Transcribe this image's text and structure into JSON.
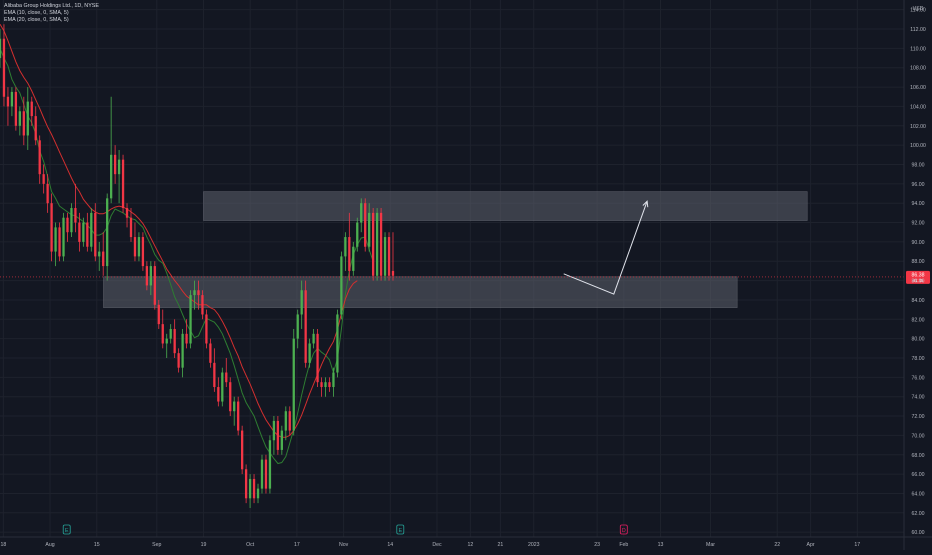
{
  "header": {
    "symbol_line": "Alibaba Group Holdings Ltd., 1D, NYSE",
    "indicator1": "EMA (10, close, 0, SMA, 5)",
    "indicator2": "EMA (20, close, 0, SMA, 5)"
  },
  "colors": {
    "background": "#131722",
    "grid": "#1e222d",
    "up": "#26a69a",
    "up_candle": "#4caf50",
    "down": "#f23645",
    "ema_fast": "#2e7d32",
    "ema_slow": "#d32f2f",
    "zone": "#5d606b",
    "text": "#b2b5be"
  },
  "price_axis": {
    "currency": "USD",
    "ticks": [
      "60.00",
      "62.00",
      "64.00",
      "66.00",
      "68.00",
      "70.00",
      "72.00",
      "74.00",
      "76.00",
      "78.00",
      "80.00",
      "82.00",
      "84.00",
      "86.00",
      "88.00",
      "90.00",
      "92.00",
      "94.00",
      "96.00",
      "98.00",
      "100.00",
      "102.00",
      "104.00",
      "106.00",
      "108.00",
      "110.00",
      "112.00",
      "114.00"
    ],
    "last_price": "86.38",
    "last_price_sub": "41:45"
  },
  "time_axis": {
    "labels": [
      {
        "label": "18",
        "day": 0
      },
      {
        "label": "Aug",
        "day": 14
      },
      {
        "label": "15",
        "day": 28
      },
      {
        "label": "Sep",
        "day": 46
      },
      {
        "label": "19",
        "day": 60
      },
      {
        "label": "Oct",
        "day": 74
      },
      {
        "label": "17",
        "day": 88
      },
      {
        "label": "Nov",
        "day": 102
      },
      {
        "label": "14",
        "day": 116
      },
      {
        "label": "Dec",
        "day": 130
      },
      {
        "label": "12",
        "day": 140
      },
      {
        "label": "21",
        "day": 149
      },
      {
        "label": "2023",
        "day": 159
      },
      {
        "label": "23",
        "day": 178
      },
      {
        "label": "Feb",
        "day": 186
      },
      {
        "label": "13",
        "day": 197
      },
      {
        "label": "Mar",
        "day": 212
      },
      {
        "label": "22",
        "day": 232
      },
      {
        "label": "Apr",
        "day": 242
      },
      {
        "label": "17",
        "day": 256
      }
    ]
  },
  "markers": [
    {
      "day": 19,
      "label": "E",
      "type": "earnings"
    },
    {
      "day": 119,
      "label": "E",
      "type": "earnings"
    },
    {
      "day": 186,
      "label": "D",
      "type": "dividend"
    }
  ],
  "chart_data": {
    "type": "candlestick",
    "ylim": [
      59.5,
      115
    ],
    "xlim": [
      -1,
      270
    ],
    "series": [
      {
        "name": "EMA (10, close, 0, SMA, 5)",
        "values": [
          110,
          109,
          108.2,
          106.8,
          106,
          105.4,
          104.2,
          103,
          102.3,
          101.2,
          99.4,
          98.3,
          96.8,
          95.2,
          94.5,
          93.7,
          93.4,
          93.1,
          92.8,
          92.7,
          92.4,
          92.1,
          91.7,
          91.3,
          90.7,
          90.7,
          90.9,
          91.5,
          92.7,
          93.4,
          93.2,
          93,
          92.7,
          92.4,
          92.3,
          91.9,
          91.5,
          90.5,
          89.7,
          88.7,
          88.1,
          87.8,
          86.8,
          85.6,
          84.3,
          83.5,
          82.5,
          81.5,
          80.8,
          80.1,
          80.3,
          81.2,
          82.1,
          81.9,
          81.7,
          81.2,
          80.5,
          79.5,
          78.5,
          77.2,
          75.8,
          74.4,
          73.4,
          72.7,
          72,
          70.9,
          69.8,
          68.8,
          68.2,
          67.6,
          67.1,
          67.2,
          67.8,
          69.2,
          70.6,
          72.3,
          74.2,
          75.9,
          77.4,
          78.5,
          79,
          78.6,
          78.3,
          77.8,
          76.5,
          77.9,
          81,
          84.6,
          87,
          88.7,
          89.7,
          90.4,
          90.5,
          89.2,
          88
        ]
      },
      {
        "name": "EMA (20, close, 0, SMA, 5)",
        "values": [
          112.5,
          111.8,
          110.8,
          109.7,
          108.6,
          107.7,
          107,
          106.4,
          105.6,
          104.7,
          103.8,
          102.8,
          101.9,
          101.1,
          100.2,
          99.3,
          98.4,
          97.5,
          96.6,
          95.8,
          95.2,
          94.4,
          93.9,
          93.4,
          93.1,
          92.9,
          92.9,
          93.1,
          93.4,
          93.6,
          93.7,
          93.6,
          93.4,
          93.1,
          92.8,
          92.4,
          91.9,
          91.2,
          90.4,
          89.6,
          88.8,
          88,
          87.2,
          86.6,
          86,
          85.5,
          84.9,
          84.4,
          84.1,
          83.8,
          83.5,
          83.5,
          83.5,
          83.2,
          83,
          82.5,
          81.8,
          81,
          80.1,
          79.1,
          78.2,
          77.1,
          76.2,
          75.3,
          74.3,
          73.3,
          72.4,
          71.6,
          71,
          70.4,
          70,
          69.8,
          69.8,
          70,
          70.5,
          71.2,
          72.1,
          73.2,
          74.3,
          75.3,
          76.3,
          77.3,
          78.2,
          79,
          79.7,
          80.9,
          82.6,
          84.1,
          85.1,
          85.7,
          86
        ]
      }
    ],
    "candles": [
      [
        109,
        112,
        108,
        111
      ],
      [
        111,
        112.5,
        104,
        105
      ],
      [
        105,
        106,
        102,
        104
      ],
      [
        104,
        106,
        103,
        105.5
      ],
      [
        105.5,
        106,
        101.5,
        102
      ],
      [
        102,
        104,
        101,
        103.5
      ],
      [
        103.5,
        105,
        100,
        101
      ],
      [
        101,
        106,
        99.5,
        104.5
      ],
      [
        104.5,
        105,
        102,
        103
      ],
      [
        103,
        104,
        100,
        100.5
      ],
      [
        100.5,
        101,
        96,
        97
      ],
      [
        97,
        98,
        95,
        96
      ],
      [
        96,
        97,
        93,
        94
      ],
      [
        94,
        95,
        88,
        89
      ],
      [
        89,
        92,
        87.5,
        91.5
      ],
      [
        91.5,
        92,
        88,
        88.5
      ],
      [
        88.5,
        93,
        88,
        92.5
      ],
      [
        92.5,
        93,
        90,
        91
      ],
      [
        91,
        94,
        90.5,
        93.5
      ],
      [
        93.5,
        96,
        91,
        92
      ],
      [
        92,
        93,
        89,
        90
      ],
      [
        90,
        92.5,
        89.5,
        92
      ],
      [
        92,
        93,
        89,
        89.5
      ],
      [
        89.5,
        93.5,
        89,
        93
      ],
      [
        93,
        94,
        88,
        88.5
      ],
      [
        88.5,
        90,
        87,
        89
      ],
      [
        89,
        91,
        86.5,
        87.5
      ],
      [
        87.5,
        95,
        86,
        94.5
      ],
      [
        94.5,
        105,
        94,
        99
      ],
      [
        99,
        100,
        96,
        97
      ],
      [
        97,
        99.5,
        94,
        98.5
      ],
      [
        98.5,
        99,
        93,
        93.5
      ],
      [
        93.5,
        94,
        91.5,
        92.5
      ],
      [
        92.5,
        93.5,
        90,
        90.5
      ],
      [
        90.5,
        92,
        88,
        88.5
      ],
      [
        88.5,
        91,
        88,
        90.5
      ],
      [
        90.5,
        91,
        87,
        87.5
      ],
      [
        87.5,
        88,
        85,
        85.5
      ],
      [
        85.5,
        88,
        84.5,
        87.5
      ],
      [
        87.5,
        88,
        83,
        83.5
      ],
      [
        83.5,
        84,
        81,
        81.5
      ],
      [
        81.5,
        83,
        79,
        79.5
      ],
      [
        79.5,
        80.5,
        78,
        80
      ],
      [
        80,
        81.5,
        79.5,
        81
      ],
      [
        81,
        82,
        78,
        78.5
      ],
      [
        78.5,
        79,
        76.5,
        77
      ],
      [
        77,
        81,
        76,
        80.5
      ],
      [
        80.5,
        82,
        79,
        79.5
      ],
      [
        79.5,
        85,
        79,
        84.5
      ],
      [
        84.5,
        86,
        83,
        85
      ],
      [
        85,
        86,
        83,
        84.5
      ],
      [
        84.5,
        85,
        82,
        82.5
      ],
      [
        82.5,
        83,
        79,
        79.5
      ],
      [
        79.5,
        80,
        77,
        77.5
      ],
      [
        77.5,
        79,
        74.5,
        75
      ],
      [
        75,
        76,
        73,
        73.5
      ],
      [
        73.5,
        77,
        73,
        76.5
      ],
      [
        76.5,
        78,
        75,
        75.5
      ],
      [
        75.5,
        76,
        72,
        72.5
      ],
      [
        72.5,
        74,
        71,
        73.5
      ],
      [
        73.5,
        74,
        70,
        70.5
      ],
      [
        70.5,
        71,
        66,
        66.5
      ],
      [
        66.5,
        67,
        63,
        63.5
      ],
      [
        63.5,
        66,
        62.5,
        65.5
      ],
      [
        65.5,
        66,
        63,
        63.5
      ],
      [
        63.5,
        65,
        63,
        64.5
      ],
      [
        64.5,
        68,
        64,
        67.5
      ],
      [
        67.5,
        68,
        64,
        64.5
      ],
      [
        64.5,
        70,
        64,
        69.5
      ],
      [
        69.5,
        72,
        68,
        71.5
      ],
      [
        71.5,
        72,
        68,
        68.5
      ],
      [
        68.5,
        71,
        68,
        70.5
      ],
      [
        70.5,
        73,
        69.5,
        72.5
      ],
      [
        72.5,
        73,
        70,
        70.5
      ],
      [
        70.5,
        81,
        70,
        80
      ],
      [
        80,
        83,
        79,
        82.5
      ],
      [
        82.5,
        86,
        81,
        85
      ],
      [
        85,
        86,
        77,
        77.5
      ],
      [
        77.5,
        80,
        77,
        79.5
      ],
      [
        79.5,
        81,
        79,
        80.5
      ],
      [
        80.5,
        81,
        75,
        75.5
      ],
      [
        75.5,
        76,
        74,
        75
      ],
      [
        75,
        76,
        74,
        75.5
      ],
      [
        75.5,
        76,
        74.5,
        75
      ],
      [
        75,
        77,
        74,
        76.5
      ],
      [
        76.5,
        83,
        76,
        82.5
      ],
      [
        82.5,
        89,
        82,
        88.5
      ],
      [
        88.5,
        91,
        87,
        90.5
      ],
      [
        90.5,
        93,
        86,
        87
      ],
      [
        87,
        90,
        86.5,
        89.5
      ],
      [
        89.5,
        92.5,
        89,
        92
      ],
      [
        92,
        94.5,
        91,
        94
      ],
      [
        94,
        94.5,
        89,
        89.5
      ],
      [
        89.5,
        94,
        89,
        93
      ],
      [
        93,
        93.5,
        86,
        86.5
      ],
      [
        86.5,
        93.5,
        86,
        93
      ],
      [
        93,
        93.5,
        86,
        86.5
      ],
      [
        86.5,
        91,
        86,
        90.5
      ],
      [
        90.5,
        91,
        86,
        86.5
      ],
      [
        87,
        91,
        86,
        86.5
      ]
    ],
    "candle_start_day": -1,
    "candle_day_step": 1.19,
    "ema_start_day": -1,
    "ema_day_step": 1.19,
    "zones": [
      {
        "from_day": 60,
        "to_day": 241,
        "top": 95.2,
        "bottom": 92.2
      },
      {
        "from_day": 30,
        "to_day": 220,
        "top": 86.4,
        "bottom": 83.2
      }
    ],
    "projection": [
      {
        "day": 168,
        "price": 86.7
      },
      {
        "day": 183,
        "price": 84.6
      },
      {
        "day": 193,
        "price": 94.2
      }
    ],
    "last_price": 86.38
  }
}
